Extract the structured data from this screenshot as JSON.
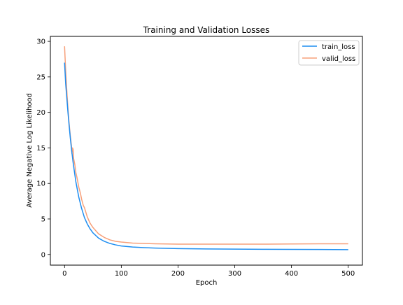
{
  "chart_data": {
    "type": "line",
    "title": "Training and Validation Losses",
    "xlabel": "Epoch",
    "ylabel": "Average Negative Log Likelihood",
    "xlim": [
      -25,
      525
    ],
    "ylim": [
      -1.5,
      30.7
    ],
    "x_ticks": [
      0,
      100,
      200,
      300,
      400,
      500
    ],
    "y_ticks": [
      0,
      5,
      10,
      15,
      20,
      25,
      30
    ],
    "grid": false,
    "legend_position": "top-right",
    "series": [
      {
        "name": "train_loss",
        "color": "#1f8ef1",
        "x": [
          0,
          2,
          4,
          6,
          8,
          10,
          12,
          15,
          18,
          20,
          25,
          30,
          35,
          40,
          45,
          50,
          60,
          70,
          80,
          90,
          100,
          120,
          140,
          160,
          180,
          200,
          250,
          300,
          350,
          400,
          450,
          500
        ],
        "values": [
          27.0,
          24.0,
          22.0,
          20.0,
          18.2,
          16.5,
          15.0,
          13.0,
          11.3,
          10.2,
          8.1,
          6.5,
          5.2,
          4.3,
          3.6,
          3.05,
          2.3,
          1.85,
          1.55,
          1.35,
          1.2,
          1.05,
          0.96,
          0.9,
          0.86,
          0.83,
          0.78,
          0.75,
          0.73,
          0.71,
          0.7,
          0.68
        ]
      },
      {
        "name": "valid_loss",
        "color": "#f7a07a",
        "x": [
          0,
          2,
          4,
          6,
          8,
          10,
          12,
          13,
          14,
          15,
          16,
          18,
          20,
          22,
          25,
          28,
          30,
          33,
          35,
          40,
          45,
          50,
          60,
          70,
          80,
          90,
          100,
          120,
          140,
          160,
          180,
          200,
          250,
          300,
          350,
          400,
          450,
          500
        ],
        "values": [
          29.3,
          25.8,
          23.0,
          20.5,
          18.5,
          16.8,
          15.4,
          14.2,
          15.0,
          14.8,
          13.5,
          12.7,
          11.5,
          10.8,
          9.5,
          8.6,
          7.8,
          6.9,
          6.6,
          5.3,
          4.4,
          3.8,
          2.9,
          2.4,
          2.05,
          1.85,
          1.75,
          1.6,
          1.55,
          1.5,
          1.48,
          1.45,
          1.45,
          1.45,
          1.45,
          1.48,
          1.5,
          1.5
        ]
      }
    ]
  }
}
